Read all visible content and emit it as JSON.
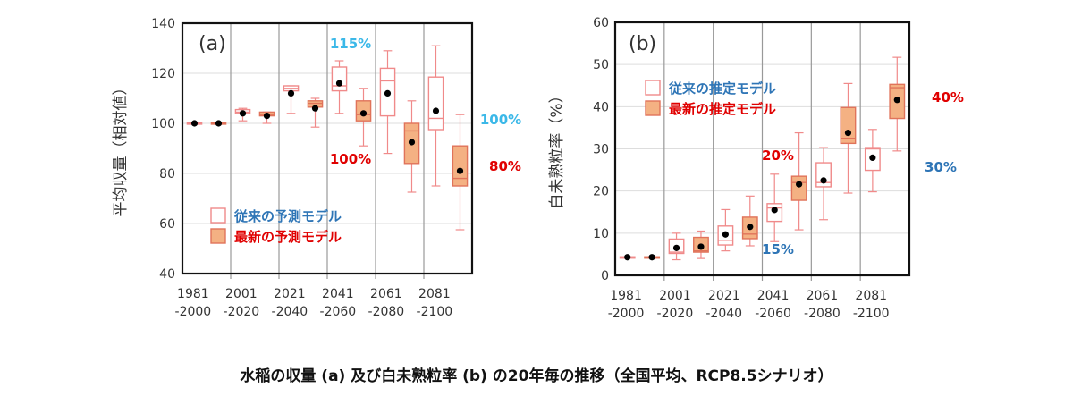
{
  "caption": "水稲の収量 (a) 及び白未熟粒率 (b) の20年毎の推移（全国平均、RCP8.5シナリオ）",
  "colors": {
    "old_edge": "#f08a8a",
    "new_fill": "#f4b183",
    "new_edge": "#e0735a",
    "mean": "#000000",
    "blue": "#2e75b6",
    "red": "#e00000",
    "cyan": "#3bb8e8",
    "grid": "#dddddd",
    "vgrid": "#999999"
  },
  "chart_data": [
    {
      "type": "boxplot",
      "panel_label": "(a)",
      "ylabel": "平均収量（相対値）",
      "ylim": [
        40,
        140
      ],
      "yticks": [
        40,
        60,
        80,
        100,
        120,
        140
      ],
      "categories": [
        "1981\n-2000",
        "2001\n-2020",
        "2021\n-2040",
        "2041\n-2060",
        "2061\n-2080",
        "2081\n-2100"
      ],
      "grid": true,
      "legend": {
        "position": "bottom-left",
        "old": "従来の予測モデル",
        "new": "最新の予測モデル"
      },
      "series": [
        {
          "name": "従来の予測モデル",
          "style": "open",
          "boxes": [
            {
              "wlo": 100,
              "q1": 99.8,
              "med": 100,
              "q3": 100.2,
              "whi": 100,
              "mean": 100
            },
            {
              "wlo": 101,
              "q1": 104,
              "med": 104.5,
              "q3": 105.5,
              "whi": 106,
              "mean": 104
            },
            {
              "wlo": 104,
              "q1": 113,
              "med": 114,
              "q3": 115,
              "whi": 115,
              "mean": 112
            },
            {
              "wlo": 104,
              "q1": 113,
              "med": 115,
              "q3": 122.5,
              "whi": 125,
              "mean": 116
            },
            {
              "wlo": 88,
              "q1": 103,
              "med": 117,
              "q3": 122,
              "whi": 129,
              "mean": 112
            },
            {
              "wlo": 75,
              "q1": 97.5,
              "med": 102,
              "q3": 118.5,
              "whi": 131,
              "mean": 105
            }
          ]
        },
        {
          "name": "最新の予測モデル",
          "style": "filled",
          "boxes": [
            {
              "wlo": 100,
              "q1": 99.8,
              "med": 100,
              "q3": 100.2,
              "whi": 100,
              "mean": 100
            },
            {
              "wlo": 100,
              "q1": 103,
              "med": 103.5,
              "q3": 104.5,
              "whi": 104.5,
              "mean": 103
            },
            {
              "wlo": 98.5,
              "q1": 106.5,
              "med": 108,
              "q3": 109,
              "whi": 110,
              "mean": 106
            },
            {
              "wlo": 91,
              "q1": 101,
              "med": 103.5,
              "q3": 109,
              "whi": 114,
              "mean": 104
            },
            {
              "wlo": 72.5,
              "q1": 84,
              "med": 97,
              "q3": 100,
              "whi": 109,
              "mean": 92.5
            },
            {
              "wlo": 57.5,
              "q1": 75,
              "med": 78,
              "q3": 91,
              "whi": 103.5,
              "mean": 81
            }
          ]
        }
      ],
      "annotations": [
        {
          "text": "115%",
          "color": "cyan"
        },
        {
          "text": "100%",
          "color": "red"
        },
        {
          "text": "100%",
          "color": "cyan"
        },
        {
          "text": "80%",
          "color": "red"
        }
      ]
    },
    {
      "type": "boxplot",
      "panel_label": "(b)",
      "ylabel": "白未熟粒率（%）",
      "ylim": [
        0,
        60
      ],
      "yticks": [
        0,
        10,
        20,
        30,
        40,
        50,
        60
      ],
      "categories": [
        "1981\n-2000",
        "2001\n-2020",
        "2021\n-2040",
        "2041\n-2060",
        "2061\n-2080",
        "2081\n-2100"
      ],
      "grid": true,
      "legend": {
        "position": "top-left",
        "old": "従来の推定モデル",
        "new": "最新の推定モデル"
      },
      "series": [
        {
          "name": "従来の推定モデル",
          "style": "open",
          "boxes": [
            {
              "wlo": 4.3,
              "q1": 4.2,
              "med": 4.3,
              "q3": 4.4,
              "whi": 4.3,
              "mean": 4.3
            },
            {
              "wlo": 3.7,
              "q1": 5.2,
              "med": 5.5,
              "q3": 8.6,
              "whi": 10,
              "mean": 6.5
            },
            {
              "wlo": 5.8,
              "q1": 7.2,
              "med": 8.3,
              "q3": 11.7,
              "whi": 15.6,
              "mean": 9.7
            },
            {
              "wlo": 8,
              "q1": 12.8,
              "med": 16,
              "q3": 17,
              "whi": 24,
              "mean": 15.5
            },
            {
              "wlo": 13.2,
              "q1": 21,
              "med": 22,
              "q3": 26.7,
              "whi": 30.3,
              "mean": 22.5
            },
            {
              "wlo": 19.8,
              "q1": 24.9,
              "med": 30,
              "q3": 30.3,
              "whi": 34.6,
              "mean": 27.9
            }
          ]
        },
        {
          "name": "最新の推定モデル",
          "style": "filled",
          "boxes": [
            {
              "wlo": 4.3,
              "q1": 4.2,
              "med": 4.3,
              "q3": 4.4,
              "whi": 4.3,
              "mean": 4.3
            },
            {
              "wlo": 4,
              "q1": 5.5,
              "med": 5.8,
              "q3": 9,
              "whi": 10.5,
              "mean": 6.8
            },
            {
              "wlo": 7,
              "q1": 8.7,
              "med": 9.8,
              "q3": 13.8,
              "whi": 18.8,
              "mean": 11.5
            },
            {
              "wlo": 10.8,
              "q1": 17.8,
              "med": 22,
              "q3": 23.5,
              "whi": 33.8,
              "mean": 21.6
            },
            {
              "wlo": 19.5,
              "q1": 31.3,
              "med": 32.5,
              "q3": 39.8,
              "whi": 45.5,
              "mean": 33.8
            },
            {
              "wlo": 29.5,
              "q1": 37.2,
              "med": 44.5,
              "q3": 45.3,
              "whi": 51.7,
              "mean": 41.6
            }
          ]
        }
      ],
      "annotations": [
        {
          "text": "20%",
          "color": "red"
        },
        {
          "text": "15%",
          "color": "blue"
        },
        {
          "text": "40%",
          "color": "red"
        },
        {
          "text": "30%",
          "color": "blue"
        }
      ]
    }
  ]
}
